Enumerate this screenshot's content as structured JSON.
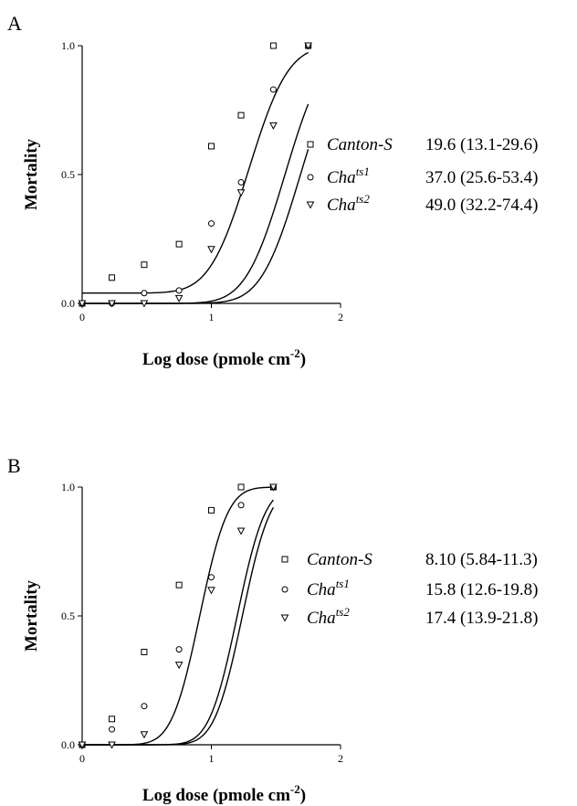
{
  "chart_data": [
    {
      "type": "scatter",
      "panel_label": "A",
      "xlabel": "Log dose (pmole cm",
      "xlabel_sup": "-2",
      "xlabel_end": ")",
      "ylabel": "Mortality",
      "xlim": [
        0,
        2
      ],
      "ylim": [
        0,
        1
      ],
      "x_ticks": [
        0,
        1,
        2
      ],
      "y_ticks": [
        0.0,
        0.5,
        1.0
      ],
      "x_tick_labels": [
        "0",
        "1",
        "2"
      ],
      "y_tick_labels": [
        "0.0",
        "0.5",
        "1.0"
      ],
      "legend_position": "right",
      "series": [
        {
          "name": "Canton-S",
          "name_base": "Canton-S",
          "name_sup": "",
          "value_text": "19.6 (13.1-29.6)",
          "marker": "square",
          "points": [
            [
              0,
              0
            ],
            [
              0.23,
              0.1
            ],
            [
              0.48,
              0.15
            ],
            [
              0.75,
              0.23
            ],
            [
              1.0,
              0.61
            ],
            [
              1.23,
              0.73
            ],
            [
              1.48,
              1.0
            ],
            [
              1.75,
              1.0
            ]
          ],
          "fit": {
            "ld50": 1.29,
            "scale": 0.24,
            "background": 0.04
          }
        },
        {
          "name": "Chats1",
          "name_base": "Cha",
          "name_sup": "ts1",
          "value_text": "37.0 (25.6-53.4)",
          "marker": "circle",
          "points": [
            [
              0,
              0
            ],
            [
              0.23,
              0.0
            ],
            [
              0.48,
              0.04
            ],
            [
              0.75,
              0.05
            ],
            [
              1.0,
              0.31
            ],
            [
              1.23,
              0.47
            ],
            [
              1.48,
              0.83
            ],
            [
              1.75,
              1.0
            ]
          ],
          "fit": {
            "ld50": 1.57,
            "scale": 0.24,
            "background": 0.0
          }
        },
        {
          "name": "Chats2",
          "name_base": "Cha",
          "name_sup": "ts2",
          "value_text": "49.0 (32.2-74.4)",
          "marker": "triangle",
          "points": [
            [
              0,
              0
            ],
            [
              0.23,
              0.0
            ],
            [
              0.48,
              0.0
            ],
            [
              0.75,
              0.02
            ],
            [
              1.0,
              0.21
            ],
            [
              1.23,
              0.43
            ],
            [
              1.48,
              0.69
            ],
            [
              1.75,
              1.0
            ]
          ],
          "fit": {
            "ld50": 1.69,
            "scale": 0.24,
            "background": 0.0
          }
        }
      ]
    },
    {
      "type": "scatter",
      "panel_label": "B",
      "xlabel": "Log dose (pmole cm",
      "xlabel_sup": "-2",
      "xlabel_end": ")",
      "ylabel": "Mortality",
      "xlim": [
        0,
        2
      ],
      "ylim": [
        0,
        1
      ],
      "x_ticks": [
        0,
        1,
        2
      ],
      "y_ticks": [
        0.0,
        0.5,
        1.0
      ],
      "x_tick_labels": [
        "0",
        "1",
        "2"
      ],
      "y_tick_labels": [
        "0.0",
        "0.5",
        "1.0"
      ],
      "legend_position": "right",
      "series": [
        {
          "name": "Canton-S",
          "name_base": "Canton-S",
          "name_sup": "",
          "value_text": "8.10 (5.84-11.3)",
          "marker": "square",
          "points": [
            [
              0,
              0
            ],
            [
              0.23,
              0.1
            ],
            [
              0.48,
              0.36
            ],
            [
              0.75,
              0.62
            ],
            [
              1.0,
              0.91
            ],
            [
              1.23,
              1.0
            ],
            [
              1.48,
              1.0
            ]
          ],
          "fit": {
            "ld50": 0.91,
            "scale": 0.17,
            "background": 0.0
          }
        },
        {
          "name": "Chats1",
          "name_base": "Cha",
          "name_sup": "ts1",
          "value_text": "15.8 (12.6-19.8)",
          "marker": "circle",
          "points": [
            [
              0,
              0
            ],
            [
              0.23,
              0.06
            ],
            [
              0.48,
              0.15
            ],
            [
              0.75,
              0.37
            ],
            [
              1.0,
              0.65
            ],
            [
              1.23,
              0.93
            ],
            [
              1.48,
              1.0
            ]
          ],
          "fit": {
            "ld50": 1.2,
            "scale": 0.17,
            "background": 0.0
          }
        },
        {
          "name": "Chats2",
          "name_base": "Cha",
          "name_sup": "ts2",
          "value_text": "17.4 (13.9-21.8)",
          "marker": "triangle",
          "points": [
            [
              0,
              0
            ],
            [
              0.23,
              0.0
            ],
            [
              0.48,
              0.04
            ],
            [
              0.75,
              0.31
            ],
            [
              1.0,
              0.6
            ],
            [
              1.23,
              0.83
            ],
            [
              1.48,
              1.0
            ]
          ],
          "fit": {
            "ld50": 1.24,
            "scale": 0.17,
            "background": 0.0
          }
        }
      ]
    }
  ]
}
